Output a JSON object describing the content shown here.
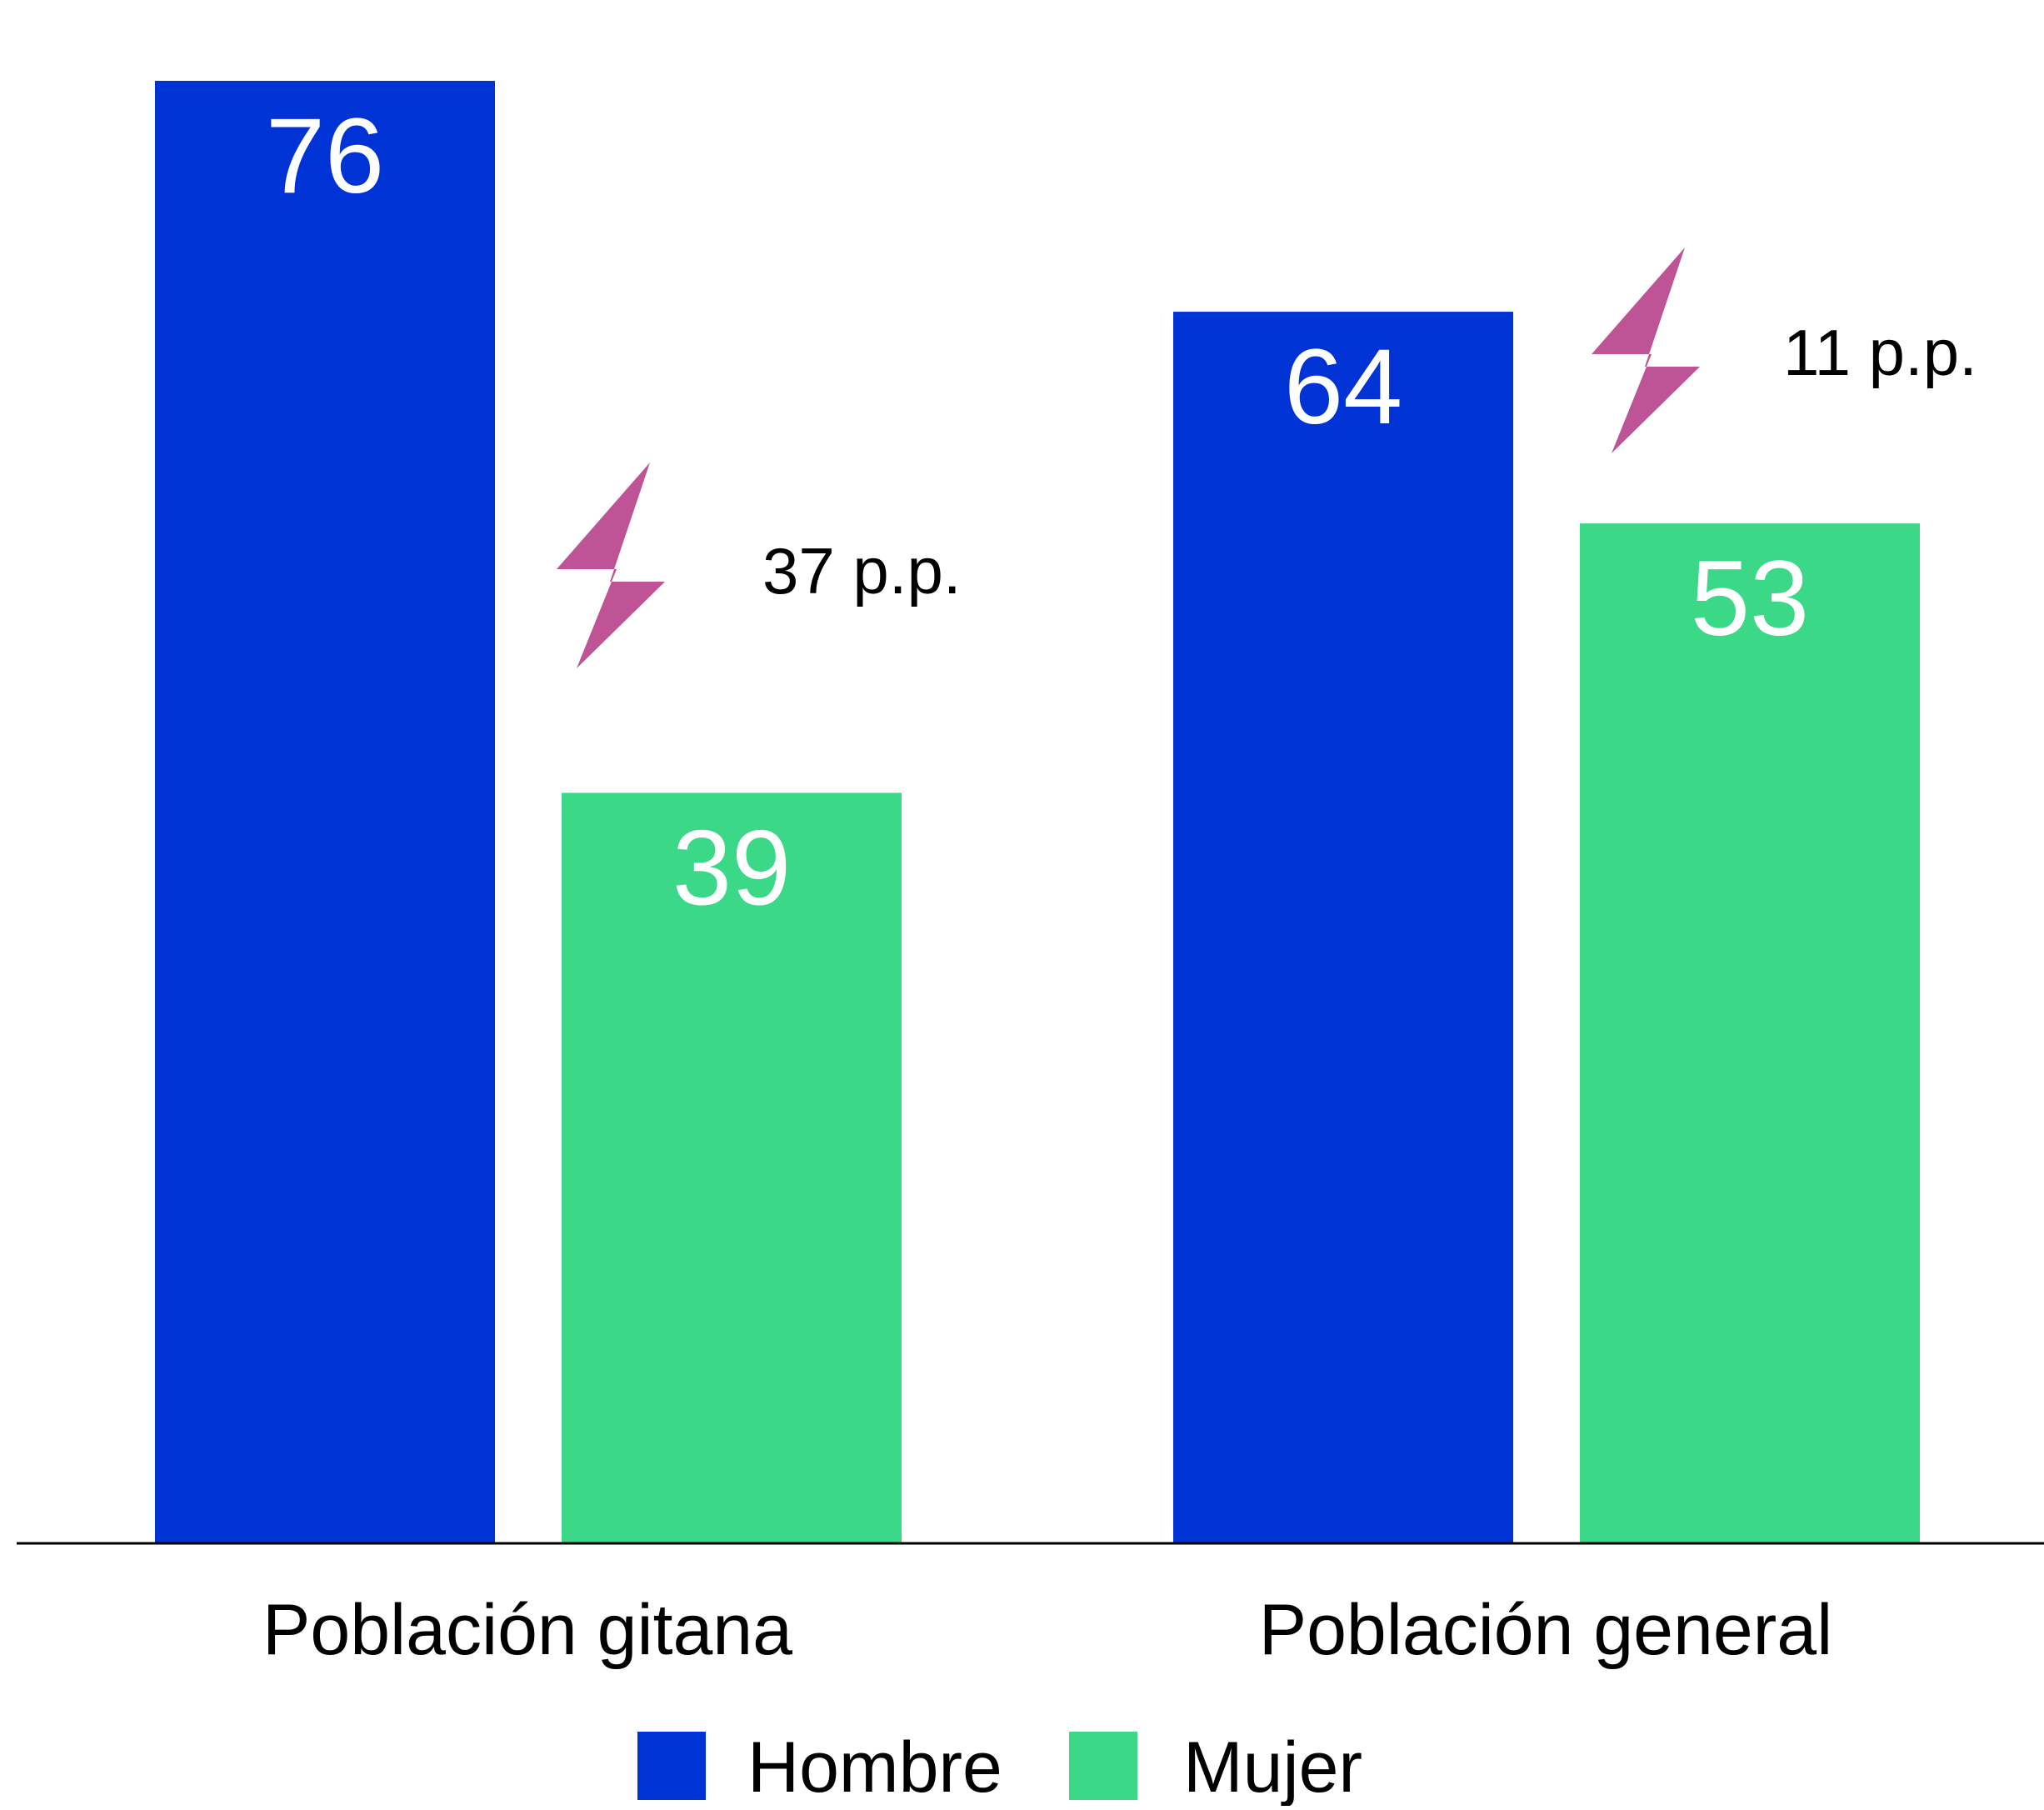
{
  "chart_data": {
    "type": "bar",
    "categories": [
      "Población gitana",
      "Población general"
    ],
    "series": [
      {
        "name": "Hombre",
        "color": "#0033d6",
        "values": [
          76,
          64
        ]
      },
      {
        "name": "Mujer",
        "color": "#3bd888",
        "values": [
          39,
          53
        ]
      }
    ],
    "data_labels": [
      [
        "76",
        "64"
      ],
      [
        "39",
        "53"
      ]
    ],
    "annotations": [
      {
        "category": "Población gitana",
        "text": "37 p.p.",
        "icon": "lightning-bolt-icon",
        "color": "#be5495"
      },
      {
        "category": "Población general",
        "text": "11 p.p.",
        "icon": "lightning-bolt-icon",
        "color": "#be5495"
      }
    ],
    "title": "",
    "xlabel": "",
    "ylabel": "",
    "ylim": [
      0,
      76
    ],
    "grid": false,
    "legend": {
      "position": "bottom-center"
    },
    "axis_color": "#000000",
    "background": "#ffffff"
  }
}
